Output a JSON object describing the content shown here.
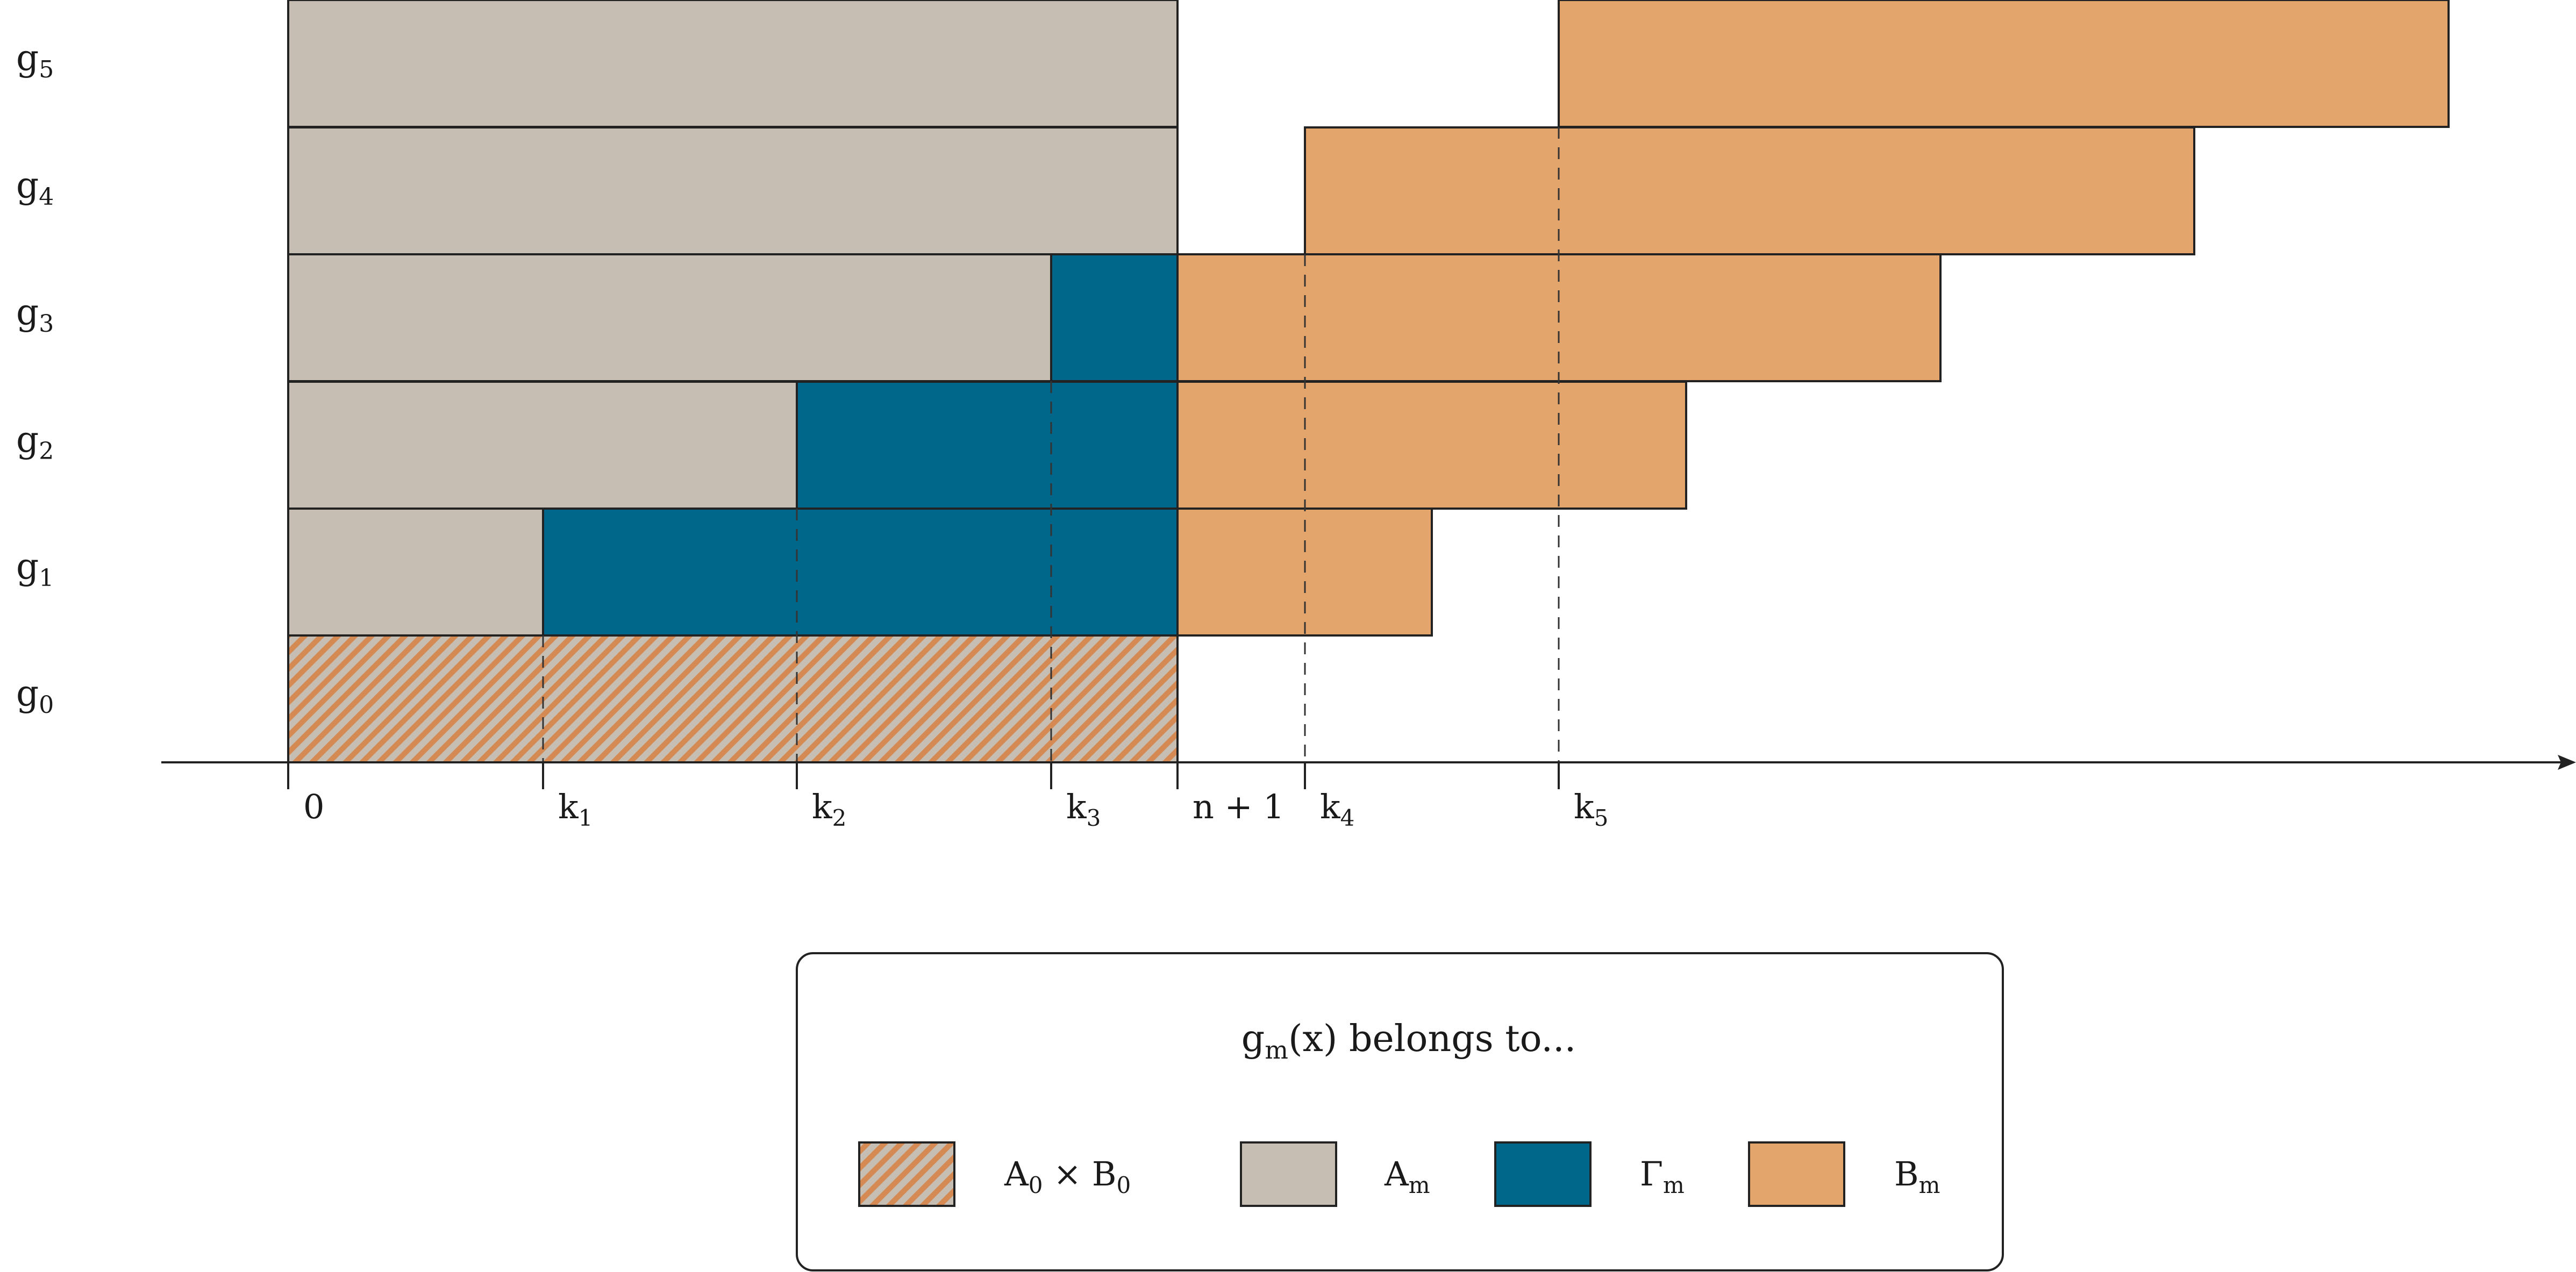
{
  "colors": {
    "A": "#c6beb3",
    "Gamma": "#00668a",
    "B": "#e3a56b",
    "hatch_base": "#c6beb3",
    "hatch_line": "#d48a52",
    "stroke": "#222222"
  },
  "rows": [
    {
      "id": "g0",
      "name": "g",
      "sub": "0"
    },
    {
      "id": "g1",
      "name": "g",
      "sub": "1"
    },
    {
      "id": "g2",
      "name": "g",
      "sub": "2"
    },
    {
      "id": "g3",
      "name": "g",
      "sub": "3"
    },
    {
      "id": "g4",
      "name": "g",
      "sub": "4"
    },
    {
      "id": "g5",
      "name": "g",
      "sub": "5"
    }
  ],
  "axis_ticks": [
    {
      "id": "t0",
      "name": "0",
      "sub": ""
    },
    {
      "id": "tk1",
      "name": "k",
      "sub": "1"
    },
    {
      "id": "tk2",
      "name": "k",
      "sub": "2"
    },
    {
      "id": "tk3",
      "name": "k",
      "sub": "3"
    },
    {
      "id": "tn1",
      "name": "n + 1",
      "sub": ""
    },
    {
      "id": "tk4",
      "name": "k",
      "sub": "4"
    },
    {
      "id": "tk5",
      "name": "k",
      "sub": "5"
    }
  ],
  "legend": {
    "title_g": "g",
    "title_sub": "m",
    "title_rest": "(x) belongs to...",
    "items": [
      {
        "key": "A0xB0",
        "a": "A",
        "a_sub": "0",
        "times": " × ",
        "b": "B",
        "b_sub": "0",
        "fill": "hatch"
      },
      {
        "key": "Am",
        "a": "A",
        "a_sub": "m",
        "fill": "A"
      },
      {
        "key": "Gm",
        "a": "Γ",
        "a_sub": "m",
        "fill": "Gamma"
      },
      {
        "key": "Bm",
        "a": "B",
        "a_sub": "m",
        "fill": "B"
      }
    ]
  }
}
